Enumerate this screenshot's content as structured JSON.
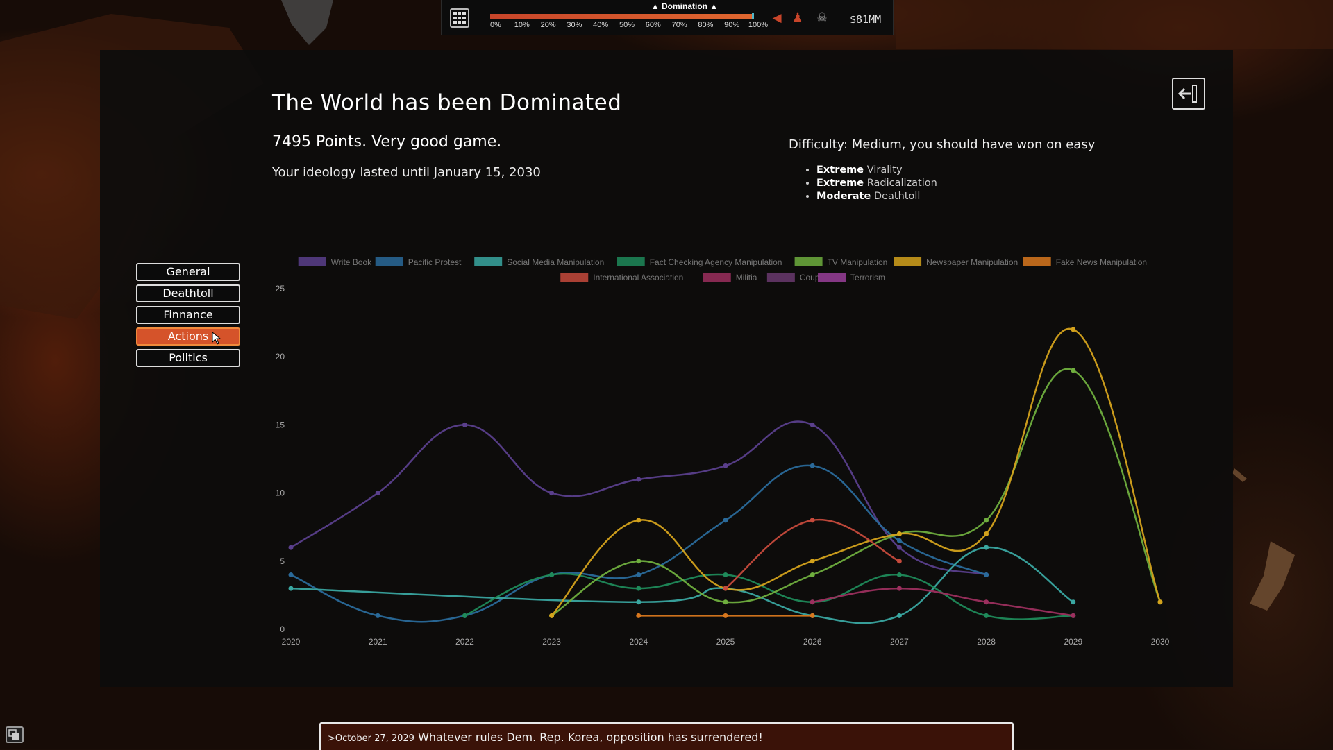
{
  "topbar": {
    "mode_label": "▲ Domination ▲",
    "progress": 1.0,
    "ticks": [
      "0%",
      "10%",
      "20%",
      "30%",
      "40%",
      "50%",
      "60%",
      "70%",
      "80%",
      "90%",
      "100%"
    ],
    "money": "$81MM",
    "icons": [
      "grid-menu-icon",
      "megaphone-icon",
      "protester-icon",
      "skull-icon"
    ]
  },
  "result": {
    "title": "The World has been Dominated",
    "points": "7495 Points. Very good game.",
    "lasted": "Your ideology lasted until January 15, 2030",
    "difficulty": "Difficulty: Medium, you should have won on easy",
    "modifiers": [
      {
        "level": "Extreme",
        "name": "Virality"
      },
      {
        "level": "Extreme",
        "name": "Radicalization"
      },
      {
        "level": "Moderate",
        "name": "Deathtoll"
      }
    ]
  },
  "tabs": [
    {
      "label": "General",
      "active": false
    },
    {
      "label": "Deathtoll",
      "active": false
    },
    {
      "label": "Finnance",
      "active": false
    },
    {
      "label": "Actions",
      "active": true
    },
    {
      "label": "Politics",
      "active": false
    }
  ],
  "chart_data": {
    "type": "line",
    "x": [
      2020,
      2021,
      2022,
      2023,
      2024,
      2025,
      2026,
      2027,
      2028,
      2029,
      2030
    ],
    "ylim": [
      0,
      25
    ],
    "yticks": [
      0,
      5,
      10,
      15,
      20,
      25
    ],
    "grid": false,
    "legend": "top",
    "series": [
      {
        "name": "Write Book",
        "color": "#5a3f8c",
        "values": [
          6,
          10,
          15,
          10,
          11,
          12,
          15,
          6,
          4,
          null,
          null
        ]
      },
      {
        "name": "Pacific Protest",
        "color": "#2a6a9a",
        "values": [
          4,
          1,
          1,
          4,
          4,
          8,
          12,
          6.5,
          4,
          null,
          null
        ]
      },
      {
        "name": "Social Media Manipulation",
        "color": "#3aa7a1",
        "values": [
          3,
          null,
          null,
          null,
          2,
          3,
          1,
          1,
          6,
          2,
          null
        ]
      },
      {
        "name": "Fact Checking Agency Manipulation",
        "color": "#1f8a5a",
        "values": [
          null,
          null,
          1,
          4,
          3,
          4,
          2,
          4,
          1,
          1,
          null
        ]
      },
      {
        "name": "TV Manipulation",
        "color": "#6fae3e",
        "values": [
          null,
          null,
          null,
          1,
          5,
          2,
          4,
          7,
          8,
          19,
          2
        ]
      },
      {
        "name": "Newspaper Manipulation",
        "color": "#d4a21c",
        "values": [
          null,
          null,
          null,
          1,
          8,
          3,
          5,
          7,
          7,
          22,
          2
        ]
      },
      {
        "name": "Fake News Manipulation",
        "color": "#d9781e",
        "values": [
          null,
          null,
          null,
          null,
          1,
          1,
          1,
          null,
          null,
          null,
          null
        ]
      },
      {
        "name": "International Association",
        "color": "#c54a3c",
        "values": [
          null,
          null,
          null,
          null,
          null,
          3,
          8,
          5,
          null,
          null,
          null
        ]
      },
      {
        "name": "Militia",
        "color": "#9c2f5e",
        "values": [
          null,
          null,
          null,
          null,
          null,
          null,
          2,
          3,
          2,
          1,
          null
        ]
      },
      {
        "name": "Coup",
        "color": "#6a3a6e",
        "values": [
          null,
          null,
          null,
          null,
          null,
          null,
          null,
          null,
          null,
          null,
          null
        ]
      },
      {
        "name": "Terrorism",
        "color": "#9a3f9a",
        "values": [
          null,
          null,
          null,
          null,
          null,
          null,
          null,
          null,
          null,
          null,
          null
        ]
      }
    ]
  },
  "ticker": {
    "prefix": ">",
    "date": "October 27, 2029",
    "message": "Whatever rules Dem. Rep. Korea, opposition has surrendered!"
  }
}
